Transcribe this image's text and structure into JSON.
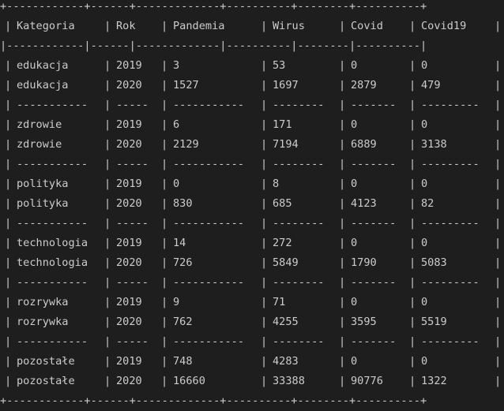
{
  "table": {
    "border_top": "+------------+------+-------------+----------+--------+----------+",
    "header_sep": "|------------|------|-------------|----------|--------|----------|",
    "group_sep_cells": [
      "-----------",
      "-----",
      "-----------",
      "--------",
      "-------",
      "---------"
    ],
    "border_bottom": "+------------+------+-------------+----------+--------+----------+",
    "headers": [
      "Kategoria",
      "Rok",
      "Pandemia",
      "Wirus",
      "Covid",
      "Covid19"
    ],
    "groups": [
      {
        "rows": [
          [
            "edukacja",
            "2019",
            "3",
            "53",
            "0",
            "0"
          ],
          [
            "edukacja",
            "2020",
            "1527",
            "1697",
            "2879",
            "479"
          ]
        ]
      },
      {
        "rows": [
          [
            "zdrowie",
            "2019",
            "6",
            "171",
            "0",
            "0"
          ],
          [
            "zdrowie",
            "2020",
            "2129",
            "7194",
            "6889",
            "3138"
          ]
        ]
      },
      {
        "rows": [
          [
            "polityka",
            "2019",
            "0",
            "8",
            "0",
            "0"
          ],
          [
            "polityka",
            "2020",
            "830",
            "685",
            "4123",
            "82"
          ]
        ]
      },
      {
        "rows": [
          [
            "technologia",
            "2019",
            "14",
            "272",
            "0",
            "0"
          ],
          [
            "technologia",
            "2020",
            "726",
            "5849",
            "1790",
            "5083"
          ]
        ]
      },
      {
        "rows": [
          [
            "rozrywka",
            "2019",
            "9",
            "71",
            "0",
            "0"
          ],
          [
            "rozrywka",
            "2020",
            "762",
            "4255",
            "3595",
            "5519"
          ]
        ]
      },
      {
        "rows": [
          [
            "pozostałe",
            "2019",
            "748",
            "4283",
            "0",
            "0"
          ],
          [
            "pozostałe",
            "2020",
            "16660",
            "33388",
            "90776",
            "1322"
          ]
        ]
      }
    ]
  }
}
